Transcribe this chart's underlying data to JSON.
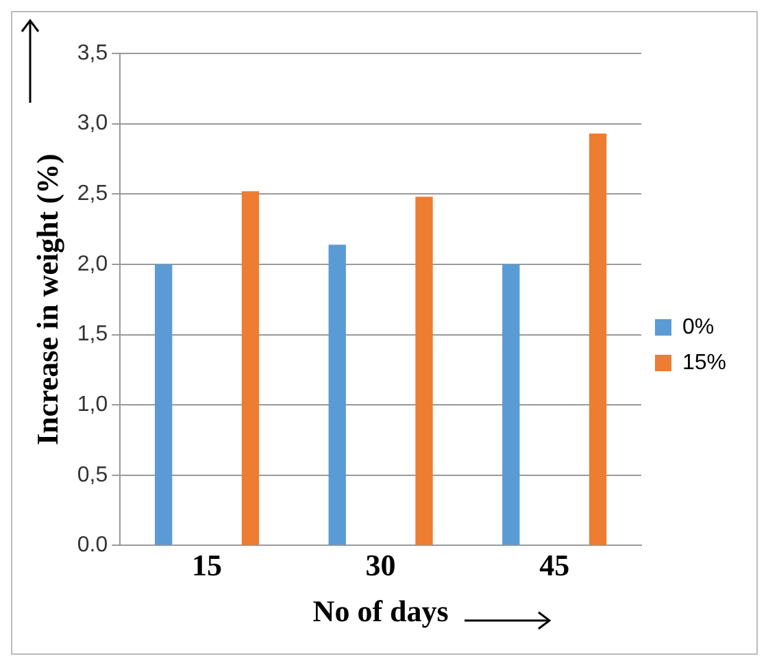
{
  "chart_data": {
    "type": "bar",
    "xlabel": "No of days",
    "ylabel": "Increase in weight (%)",
    "categories": [
      "15",
      "30",
      "45"
    ],
    "series": [
      {
        "name": "0%",
        "color": "#5b9bd5",
        "values": [
          2.0,
          2.14,
          2.0
        ]
      },
      {
        "name": "15%",
        "color": "#ed7d31",
        "values": [
          2.52,
          2.48,
          2.93
        ]
      }
    ],
    "ylim": [
      0,
      3.5
    ],
    "yticks": [
      {
        "value": 0,
        "label": "0.0"
      },
      {
        "value": 0.5,
        "label": "0,5"
      },
      {
        "value": 1,
        "label": "1,0"
      },
      {
        "value": 1.5,
        "label": "1,5"
      },
      {
        "value": 2,
        "label": "2,0"
      },
      {
        "value": 2.5,
        "label": "2,5"
      },
      {
        "value": 3,
        "label": "3,0"
      },
      {
        "value": 3.5,
        "label": "3,5"
      }
    ],
    "grid": "y",
    "legend": "right"
  }
}
